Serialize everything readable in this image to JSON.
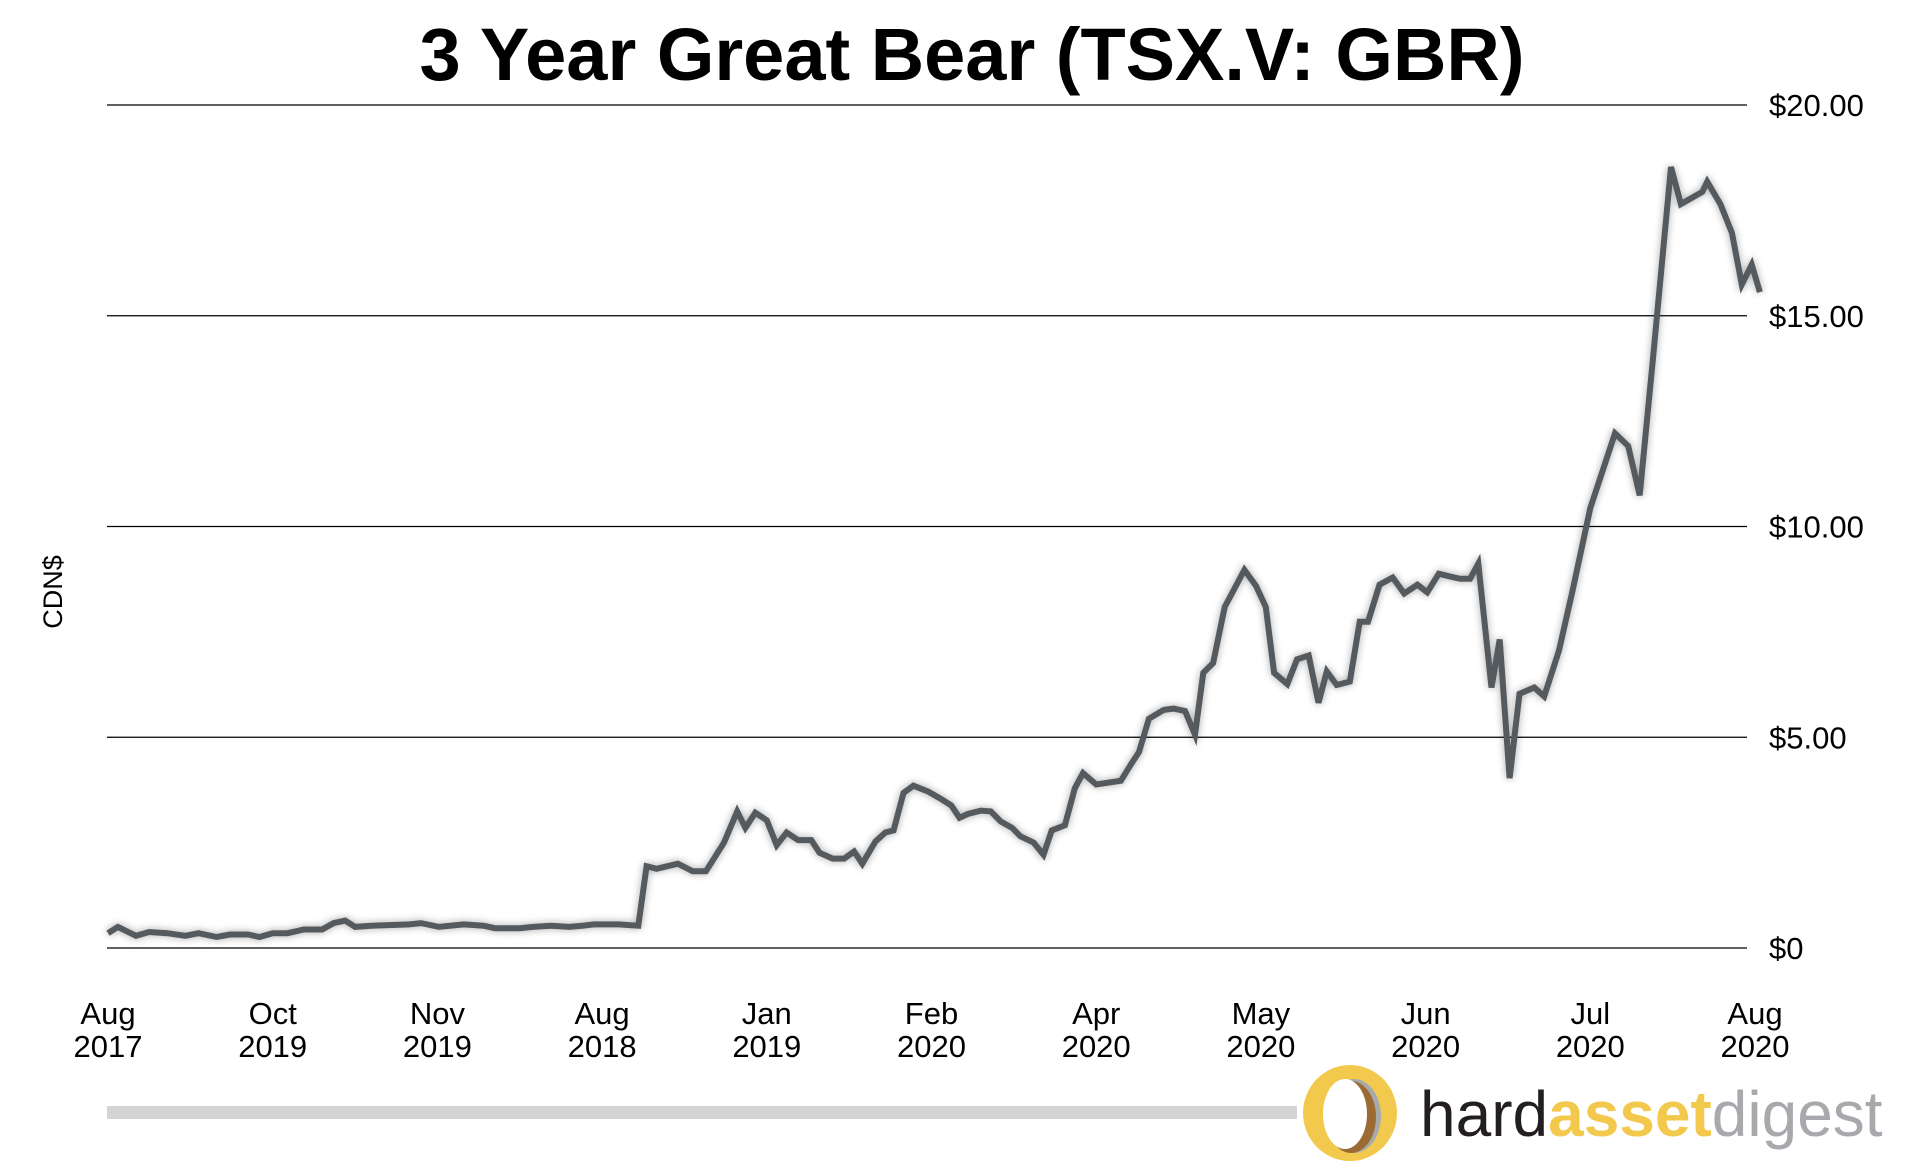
{
  "chart_data": {
    "type": "line",
    "title": "3 Year Great Bear (TSX.V: GBR)",
    "ylabel": "CDN$",
    "xlabel": "",
    "ylim": [
      0,
      20
    ],
    "yticks": [
      {
        "value": 0,
        "label": "$0"
      },
      {
        "value": 5,
        "label": "$5.00"
      },
      {
        "value": 10,
        "label": "$10.00"
      },
      {
        "value": 15,
        "label": "$15.00"
      },
      {
        "value": 20,
        "label": "$20.00"
      }
    ],
    "xticks": [
      {
        "month": "Aug",
        "year": "2017"
      },
      {
        "month": "Oct",
        "year": "2019"
      },
      {
        "month": "Nov",
        "year": "2019"
      },
      {
        "month": "Aug",
        "year": "2018"
      },
      {
        "month": "Jan",
        "year": "2019"
      },
      {
        "month": "Feb",
        "year": "2020"
      },
      {
        "month": "Apr",
        "year": "2020"
      },
      {
        "month": "May",
        "year": "2020"
      },
      {
        "month": "Jun",
        "year": "2020"
      },
      {
        "month": "Jul",
        "year": "2020"
      },
      {
        "month": "Aug",
        "year": "2020"
      }
    ],
    "grid": "horizontal",
    "line_color": "#555a5f",
    "series": [
      {
        "points": [
          [
            0,
            0.35
          ],
          [
            0.06,
            0.5
          ],
          [
            0.17,
            0.29
          ],
          [
            0.25,
            0.38
          ],
          [
            0.36,
            0.35
          ],
          [
            0.47,
            0.29
          ],
          [
            0.55,
            0.35
          ],
          [
            0.66,
            0.26
          ],
          [
            0.74,
            0.32
          ],
          [
            0.85,
            0.32
          ],
          [
            0.92,
            0.26
          ],
          [
            1.0,
            0.35
          ],
          [
            1.09,
            0.35
          ],
          [
            1.19,
            0.44
          ],
          [
            1.3,
            0.44
          ],
          [
            1.37,
            0.59
          ],
          [
            1.44,
            0.65
          ],
          [
            1.5,
            0.5
          ],
          [
            1.6,
            0.53
          ],
          [
            1.83,
            0.56
          ],
          [
            1.9,
            0.59
          ],
          [
            2.01,
            0.5
          ],
          [
            2.16,
            0.56
          ],
          [
            2.28,
            0.53
          ],
          [
            2.35,
            0.47
          ],
          [
            2.5,
            0.47
          ],
          [
            2.58,
            0.5
          ],
          [
            2.69,
            0.53
          ],
          [
            2.8,
            0.5
          ],
          [
            2.88,
            0.53
          ],
          [
            2.95,
            0.56
          ],
          [
            3.1,
            0.56
          ],
          [
            3.22,
            0.53
          ],
          [
            3.27,
            1.94
          ],
          [
            3.33,
            1.88
          ],
          [
            3.46,
            2.0
          ],
          [
            3.55,
            1.82
          ],
          [
            3.63,
            1.82
          ],
          [
            3.74,
            2.5
          ],
          [
            3.82,
            3.24
          ],
          [
            3.87,
            2.85
          ],
          [
            3.93,
            3.21
          ],
          [
            4.0,
            3.03
          ],
          [
            4.06,
            2.44
          ],
          [
            4.12,
            2.74
          ],
          [
            4.19,
            2.56
          ],
          [
            4.27,
            2.56
          ],
          [
            4.32,
            2.26
          ],
          [
            4.4,
            2.12
          ],
          [
            4.47,
            2.12
          ],
          [
            4.53,
            2.29
          ],
          [
            4.58,
            2.0
          ],
          [
            4.66,
            2.53
          ],
          [
            4.72,
            2.74
          ],
          [
            4.77,
            2.79
          ],
          [
            4.83,
            3.68
          ],
          [
            4.89,
            3.85
          ],
          [
            4.98,
            3.71
          ],
          [
            5.06,
            3.53
          ],
          [
            5.12,
            3.38
          ],
          [
            5.17,
            3.09
          ],
          [
            5.22,
            3.18
          ],
          [
            5.3,
            3.26
          ],
          [
            5.36,
            3.24
          ],
          [
            5.42,
            3.0
          ],
          [
            5.49,
            2.85
          ],
          [
            5.54,
            2.65
          ],
          [
            5.62,
            2.5
          ],
          [
            5.68,
            2.21
          ],
          [
            5.73,
            2.79
          ],
          [
            5.81,
            2.91
          ],
          [
            5.87,
            3.79
          ],
          [
            5.92,
            4.15
          ],
          [
            6.0,
            3.88
          ],
          [
            6.15,
            3.97
          ],
          [
            6.21,
            4.35
          ],
          [
            6.26,
            4.65
          ],
          [
            6.32,
            5.44
          ],
          [
            6.41,
            5.65
          ],
          [
            6.47,
            5.68
          ],
          [
            6.54,
            5.62
          ],
          [
            6.6,
            5.06
          ],
          [
            6.65,
            6.53
          ],
          [
            6.71,
            6.76
          ],
          [
            6.78,
            8.09
          ],
          [
            6.9,
            8.97
          ],
          [
            6.97,
            8.59
          ],
          [
            7.03,
            8.09
          ],
          [
            7.08,
            6.53
          ],
          [
            7.16,
            6.26
          ],
          [
            7.22,
            6.85
          ],
          [
            7.29,
            6.94
          ],
          [
            7.35,
            5.82
          ],
          [
            7.4,
            6.56
          ],
          [
            7.46,
            6.24
          ],
          [
            7.54,
            6.32
          ],
          [
            7.6,
            7.74
          ],
          [
            7.65,
            7.74
          ],
          [
            7.72,
            8.62
          ],
          [
            7.8,
            8.79
          ],
          [
            7.87,
            8.41
          ],
          [
            7.95,
            8.62
          ],
          [
            8.01,
            8.44
          ],
          [
            8.08,
            8.88
          ],
          [
            8.14,
            8.82
          ],
          [
            8.21,
            8.76
          ],
          [
            8.27,
            8.76
          ],
          [
            8.32,
            9.12
          ],
          [
            8.4,
            6.18
          ],
          [
            8.45,
            7.32
          ],
          [
            8.51,
            4.03
          ],
          [
            8.57,
            6.03
          ],
          [
            8.66,
            6.18
          ],
          [
            8.72,
            5.97
          ],
          [
            8.81,
            7.06
          ],
          [
            8.89,
            8.44
          ],
          [
            9.0,
            10.44
          ],
          [
            9.15,
            12.21
          ],
          [
            9.23,
            11.91
          ],
          [
            9.3,
            10.74
          ],
          [
            9.38,
            13.97
          ],
          [
            9.49,
            18.53
          ],
          [
            9.55,
            17.65
          ],
          [
            9.68,
            17.94
          ],
          [
            9.71,
            18.18
          ],
          [
            9.79,
            17.65
          ],
          [
            9.86,
            16.97
          ],
          [
            9.92,
            15.74
          ],
          [
            9.98,
            16.21
          ],
          [
            10.03,
            15.56
          ]
        ]
      }
    ]
  },
  "footer": {
    "logo": {
      "part1": "hard",
      "part2": "asset",
      "part3": "digest"
    },
    "colors": {
      "gold": "#f2c94c",
      "bronze": "#9c6b34",
      "dark": "#231f20",
      "gray": "#a7a9ac",
      "bar": "#d4d4d4"
    }
  }
}
